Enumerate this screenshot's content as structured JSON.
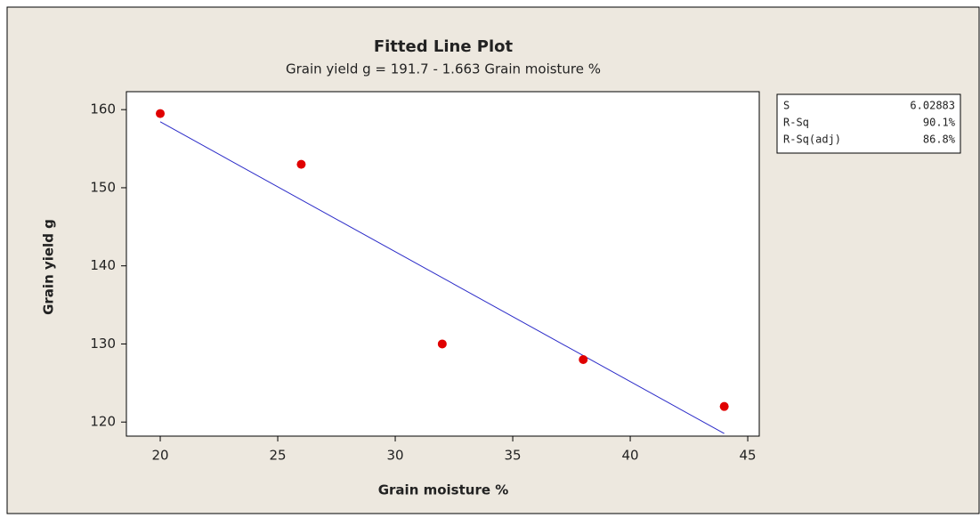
{
  "chart_data": {
    "type": "scatter",
    "title": "Fitted Line Plot",
    "subtitle": "Grain yield g =  191.7 - 1.663 Grain moisture %",
    "xlabel": "Grain moisture %",
    "ylabel": "Grain yield g",
    "series": [
      {
        "x": [
          20,
          26,
          32,
          38,
          44
        ],
        "values": [
          159.5,
          153,
          130,
          128,
          122
        ],
        "color": "#e00000"
      }
    ],
    "fit_line": {
      "x": [
        20,
        44
      ],
      "values": [
        158.44,
        118.53
      ],
      "color": "#2a2ac8"
    },
    "xlim": [
      18.56,
      45.49
    ],
    "xticks": [
      20,
      25,
      30,
      35,
      40,
      45
    ],
    "ylim": [
      118.2,
      162.3
    ],
    "yticks": [
      120,
      130,
      140,
      150,
      160
    ],
    "stats": [
      {
        "label": "S",
        "value": "6.02883"
      },
      {
        "label": "R-Sq",
        "value": "90.1%"
      },
      {
        "label": "R-Sq(adj)",
        "value": "86.8%"
      }
    ]
  }
}
